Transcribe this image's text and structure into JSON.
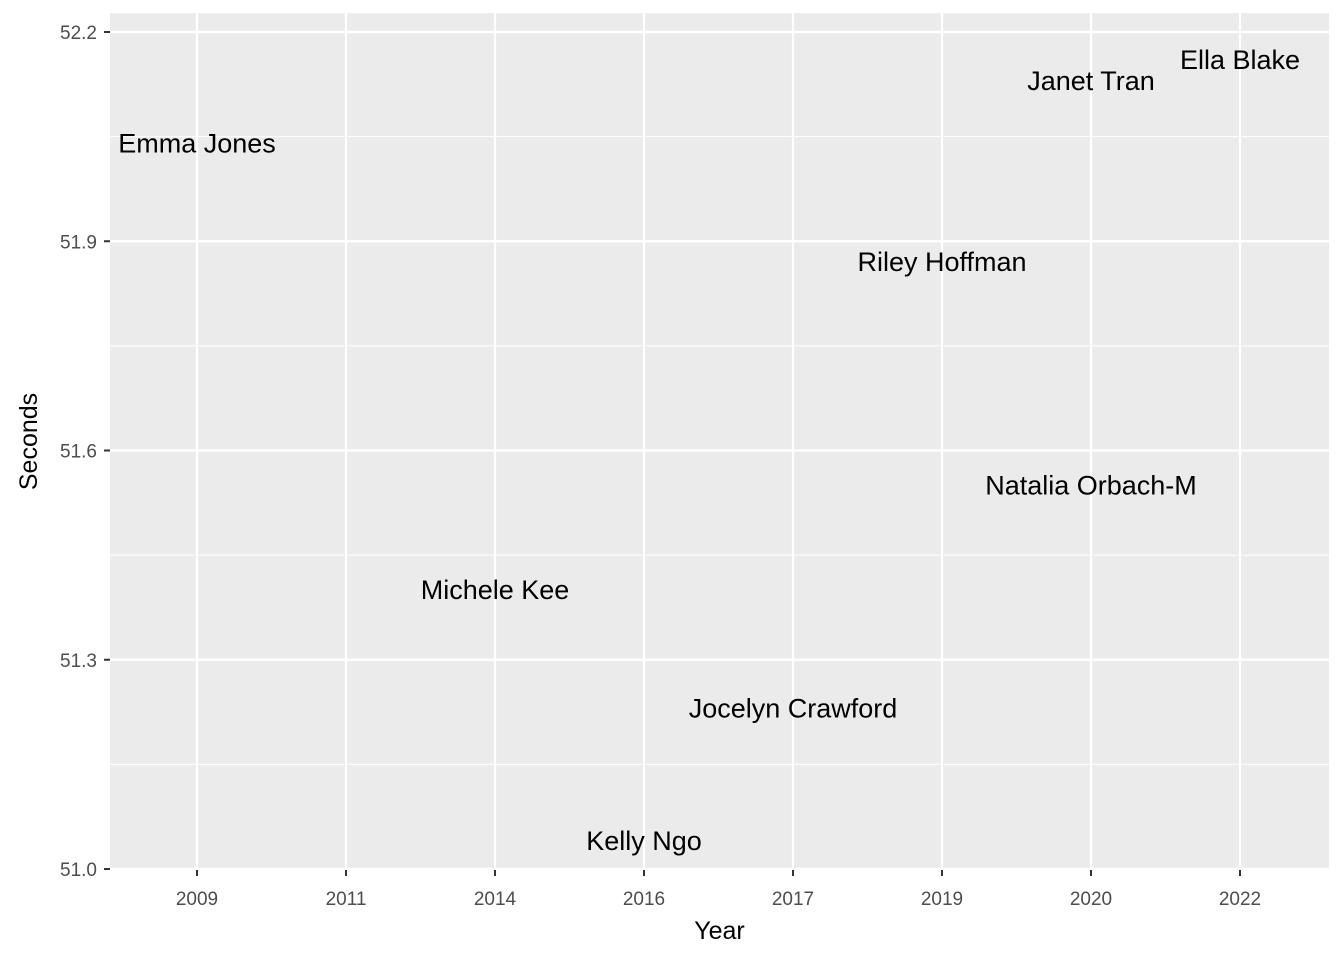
{
  "chart_data": {
    "type": "scatter",
    "geom": "text",
    "title": "",
    "xlabel": "Year",
    "ylabel": "Seconds",
    "x_scale": "discrete",
    "x_categories": [
      "2009",
      "2011",
      "2014",
      "2016",
      "2017",
      "2019",
      "2020",
      "2022"
    ],
    "ylim": [
      51.0,
      52.2
    ],
    "y_ticks": [
      51.0,
      51.3,
      51.6,
      51.9,
      52.2
    ],
    "y_tick_labels": [
      "51.0",
      "51.3",
      "51.6",
      "51.9",
      "52.2"
    ],
    "grid": true,
    "legend": "none",
    "points": [
      {
        "x": "2009",
        "y": 52.04,
        "label": "Emma Jones"
      },
      {
        "x": "2014",
        "y": 51.4,
        "label": "Michele Kee"
      },
      {
        "x": "2016",
        "y": 51.04,
        "label": "Kelly Ngo"
      },
      {
        "x": "2017",
        "y": 51.23,
        "label": "Jocelyn Crawford"
      },
      {
        "x": "2019",
        "y": 51.87,
        "label": "Riley Hoffman"
      },
      {
        "x": "2020",
        "y": 52.13,
        "label": "Janet Tran"
      },
      {
        "x": "2020",
        "y": 51.55,
        "label": "Natalia Orbach-M"
      },
      {
        "x": "2022",
        "y": 52.16,
        "label": "Ella Blake"
      }
    ]
  },
  "colors": {
    "panel_background": "#ebebeb",
    "grid": "#ffffff",
    "tick_text": "#4d4d4d",
    "label_text": "#000000"
  }
}
